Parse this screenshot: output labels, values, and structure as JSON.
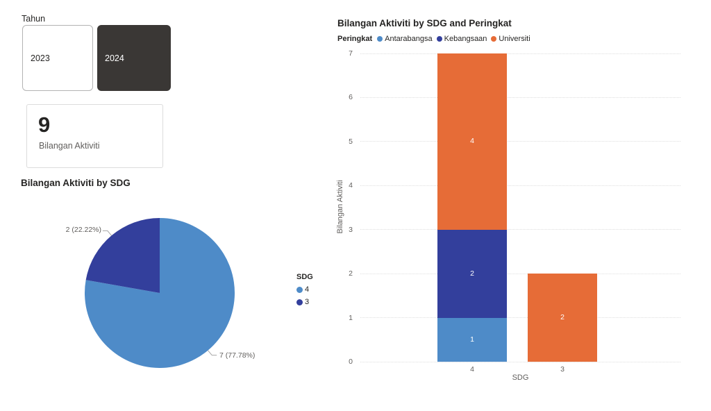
{
  "slicer": {
    "title": "Tahun",
    "options": [
      {
        "label": "2023",
        "selected": false
      },
      {
        "label": "2024",
        "selected": true
      }
    ],
    "selected_bg": "#3a3735",
    "selected_text": "#ffffff"
  },
  "card": {
    "value": "9",
    "label": "Bilangan Aktiviti"
  },
  "pie": {
    "title": "Bilangan Aktiviti by SDG",
    "legend_title": "SDG",
    "chart_data": {
      "type": "pie",
      "title": "Bilangan Aktiviti by SDG",
      "categories": [
        "4",
        "3"
      ],
      "values": [
        7,
        2
      ],
      "slices": [
        {
          "category": "4",
          "value": 7,
          "pct": 77.78,
          "label": "7 (77.78%)",
          "color": "#4e8bc8"
        },
        {
          "category": "3",
          "value": 2,
          "pct": 22.22,
          "label": "2 (22.22%)",
          "color": "#333f9c"
        }
      ],
      "legend": [
        {
          "label": "4",
          "color": "#4e8bc8"
        },
        {
          "label": "3",
          "color": "#333f9c"
        }
      ],
      "start_angle_deg": 0,
      "direction": "clockwise",
      "legend_position": "right"
    }
  },
  "bar": {
    "title": "Bilangan Aktiviti by SDG and Peringkat",
    "legend_title": "Peringkat",
    "chart_data": {
      "type": "bar",
      "stacked": true,
      "categories": [
        "4",
        "3"
      ],
      "series": [
        {
          "name": "Antarabangsa",
          "color": "#4e8bc8",
          "values": [
            1,
            0
          ]
        },
        {
          "name": "Kebangsaan",
          "color": "#333f9c",
          "values": [
            2,
            0
          ]
        },
        {
          "name": "Universiti",
          "color": "#e66c37",
          "values": [
            4,
            2
          ]
        }
      ],
      "totals": [
        7,
        2
      ],
      "xlabel": "SDG",
      "ylabel": "Bilangan Aktiviti",
      "ylim": [
        0,
        7
      ],
      "yticks": [
        0,
        1,
        2,
        3,
        4,
        5,
        6,
        7
      ],
      "grid": "dotted-horizontal",
      "legend_position": "top"
    }
  }
}
